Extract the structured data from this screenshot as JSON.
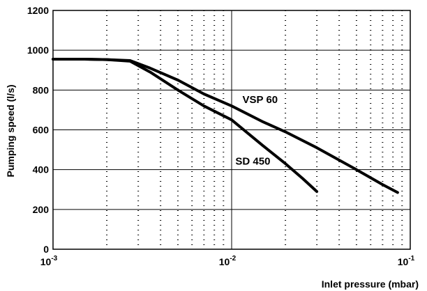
{
  "chart_data": {
    "type": "line",
    "title": "",
    "xlabel": "Inlet pressure (mbar)",
    "ylabel": "Pumping speed (l/s)",
    "xscale": "log",
    "xlim": [
      0.001,
      0.1
    ],
    "ylim": [
      0,
      1200
    ],
    "x_ticks": [
      {
        "value": 0.001,
        "base": "10",
        "exp": "-3"
      },
      {
        "value": 0.01,
        "base": "10",
        "exp": "-2"
      },
      {
        "value": 0.1,
        "base": "10",
        "exp": "-1"
      }
    ],
    "y_ticks": [
      {
        "value": 0,
        "label": "0"
      },
      {
        "value": 200,
        "label": "200"
      },
      {
        "value": 400,
        "label": "400"
      },
      {
        "value": 600,
        "label": "600"
      },
      {
        "value": 800,
        "label": "800"
      },
      {
        "value": 1000,
        "label": "1000"
      },
      {
        "value": 1200,
        "label": "1200"
      }
    ],
    "grid": {
      "major": true,
      "minor_x": true
    },
    "series": [
      {
        "name": "VSP 60",
        "label_at": {
          "x": 0.0115,
          "y": 735
        },
        "points": [
          {
            "x": 0.001,
            "y": 955
          },
          {
            "x": 0.0015,
            "y": 955
          },
          {
            "x": 0.002,
            "y": 953
          },
          {
            "x": 0.0027,
            "y": 948
          },
          {
            "x": 0.0035,
            "y": 910
          },
          {
            "x": 0.005,
            "y": 850
          },
          {
            "x": 0.007,
            "y": 780
          },
          {
            "x": 0.01,
            "y": 720
          },
          {
            "x": 0.015,
            "y": 640
          },
          {
            "x": 0.02,
            "y": 590
          },
          {
            "x": 0.03,
            "y": 510
          },
          {
            "x": 0.05,
            "y": 400
          },
          {
            "x": 0.07,
            "y": 325
          },
          {
            "x": 0.085,
            "y": 285
          }
        ]
      },
      {
        "name": "SD 450",
        "label_at": {
          "x": 0.0105,
          "y": 425
        },
        "points": [
          {
            "x": 0.001,
            "y": 955
          },
          {
            "x": 0.0015,
            "y": 955
          },
          {
            "x": 0.002,
            "y": 953
          },
          {
            "x": 0.0027,
            "y": 945
          },
          {
            "x": 0.0035,
            "y": 890
          },
          {
            "x": 0.005,
            "y": 800
          },
          {
            "x": 0.007,
            "y": 720
          },
          {
            "x": 0.01,
            "y": 650
          },
          {
            "x": 0.015,
            "y": 520
          },
          {
            "x": 0.02,
            "y": 430
          },
          {
            "x": 0.025,
            "y": 355
          },
          {
            "x": 0.03,
            "y": 290
          }
        ]
      }
    ]
  }
}
